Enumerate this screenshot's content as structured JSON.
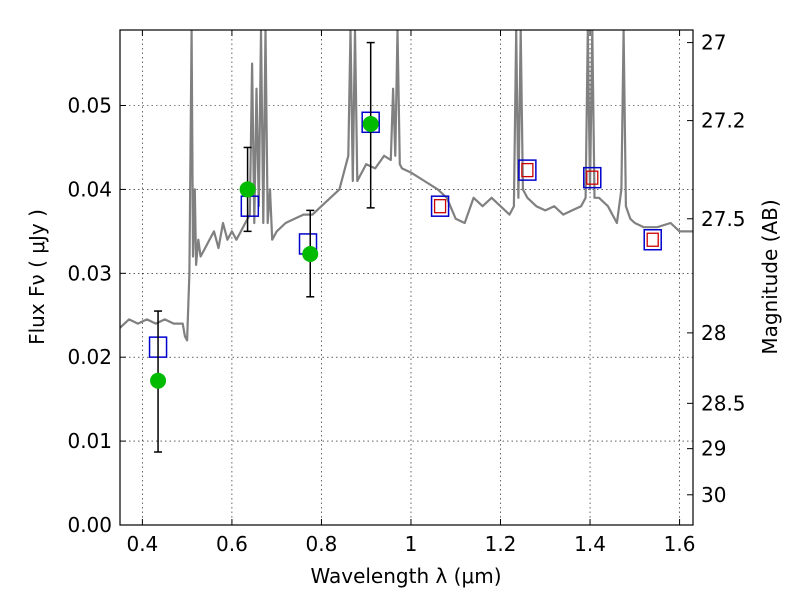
{
  "chart_data": {
    "type": "scatter",
    "xlabel": "Wavelength  λ (μm)",
    "ylabel": "Flux  Fν  ( μJy )",
    "ylabel_right": "Magnitude (AB)",
    "xlim": [
      0.35,
      1.63
    ],
    "ylim": [
      0.0,
      0.059
    ],
    "x_ticks": [
      0.4,
      0.6,
      0.8,
      1.0,
      1.2,
      1.4,
      1.6
    ],
    "x_tick_labels": [
      "0.4",
      "0.6",
      "0.8",
      "1",
      "1.2",
      "1.4",
      "1.6"
    ],
    "y_ticks": [
      0.0,
      0.01,
      0.02,
      0.03,
      0.04,
      0.05
    ],
    "y_tick_labels": [
      "0.00",
      "0.01",
      "0.02",
      "0.03",
      "0.04",
      "0.05"
    ],
    "right_ticks": [
      {
        "label": "27",
        "flux": 0.0575
      },
      {
        "label": "27.2",
        "flux": 0.0482
      },
      {
        "label": "27.5",
        "flux": 0.0365
      },
      {
        "label": "28",
        "flux": 0.0229
      },
      {
        "label": "28.5",
        "flux": 0.0145
      },
      {
        "label": "29",
        "flux": 0.0091
      },
      {
        "label": "30",
        "flux": 0.0036
      }
    ],
    "grid": true,
    "colors": {
      "spectrum": "#808080",
      "observed": "#00bb00",
      "model_box": "#0000cc",
      "model_inner": "#cc0000",
      "errorbar": "#000000"
    },
    "series": [
      {
        "type": "line",
        "x": [
          0.35,
          0.36,
          0.37,
          0.39,
          0.41,
          0.43,
          0.45,
          0.47,
          0.49,
          0.495,
          0.5,
          0.505,
          0.51,
          0.513,
          0.517,
          0.52,
          0.525,
          0.53,
          0.54,
          0.55,
          0.56,
          0.57,
          0.58,
          0.59,
          0.6,
          0.61,
          0.62,
          0.63,
          0.64,
          0.645,
          0.65,
          0.655,
          0.66,
          0.665,
          0.67,
          0.675,
          0.68,
          0.685,
          0.69,
          0.7,
          0.72,
          0.74,
          0.76,
          0.78,
          0.8,
          0.82,
          0.84,
          0.86,
          0.865,
          0.87,
          0.875,
          0.88,
          0.89,
          0.9,
          0.92,
          0.94,
          0.955,
          0.96,
          0.965,
          0.97,
          0.975,
          0.98,
          1.0,
          1.03,
          1.06,
          1.08,
          1.1,
          1.12,
          1.14,
          1.16,
          1.18,
          1.2,
          1.22,
          1.23,
          1.235,
          1.24,
          1.245,
          1.25,
          1.26,
          1.28,
          1.3,
          1.32,
          1.34,
          1.36,
          1.38,
          1.39,
          1.395,
          1.4,
          1.405,
          1.41,
          1.42,
          1.44,
          1.46,
          1.47,
          1.475,
          1.48,
          1.49,
          1.5,
          1.52,
          1.55,
          1.58,
          1.6,
          1.63
        ],
        "y": [
          0.0235,
          0.024,
          0.0245,
          0.024,
          0.0245,
          0.024,
          0.0245,
          0.024,
          0.024,
          0.0225,
          0.022,
          0.03,
          0.059,
          0.032,
          0.04,
          0.031,
          0.034,
          0.032,
          0.033,
          0.034,
          0.035,
          0.033,
          0.036,
          0.034,
          0.035,
          0.034,
          0.035,
          0.036,
          0.037,
          0.055,
          0.036,
          0.052,
          0.038,
          0.059,
          0.036,
          0.059,
          0.036,
          0.04,
          0.034,
          0.035,
          0.036,
          0.0365,
          0.037,
          0.037,
          0.038,
          0.039,
          0.04,
          0.044,
          0.059,
          0.041,
          0.059,
          0.041,
          0.042,
          0.043,
          0.0425,
          0.044,
          0.0435,
          0.052,
          0.044,
          0.059,
          0.043,
          0.0425,
          0.042,
          0.041,
          0.04,
          0.039,
          0.0365,
          0.036,
          0.039,
          0.038,
          0.039,
          0.038,
          0.037,
          0.038,
          0.059,
          0.039,
          0.059,
          0.04,
          0.039,
          0.038,
          0.0375,
          0.038,
          0.037,
          0.0375,
          0.038,
          0.039,
          0.059,
          0.04,
          0.059,
          0.039,
          0.039,
          0.038,
          0.036,
          0.04,
          0.059,
          0.038,
          0.0365,
          0.036,
          0.0355,
          0.0355,
          0.036,
          0.035,
          0.035
        ]
      },
      {
        "type": "scatter",
        "marker": "circle",
        "x": [
          0.435,
          0.635,
          0.775,
          0.91
        ],
        "y": [
          0.0172,
          0.04,
          0.0323,
          0.0478
        ],
        "yerr_low": [
          0.0085,
          0.005,
          0.0051,
          0.01
        ],
        "yerr_high": [
          0.0083,
          0.005,
          0.0052,
          0.0097
        ]
      },
      {
        "type": "scatter",
        "marker": "square",
        "x": [
          0.435,
          0.64,
          0.77,
          0.91,
          1.065,
          1.26,
          1.405,
          1.54
        ],
        "y": [
          0.0212,
          0.038,
          0.0335,
          0.048,
          0.038,
          0.0423,
          0.0414,
          0.034
        ],
        "inner_square": [
          false,
          false,
          false,
          false,
          true,
          true,
          true,
          true
        ]
      }
    ]
  }
}
